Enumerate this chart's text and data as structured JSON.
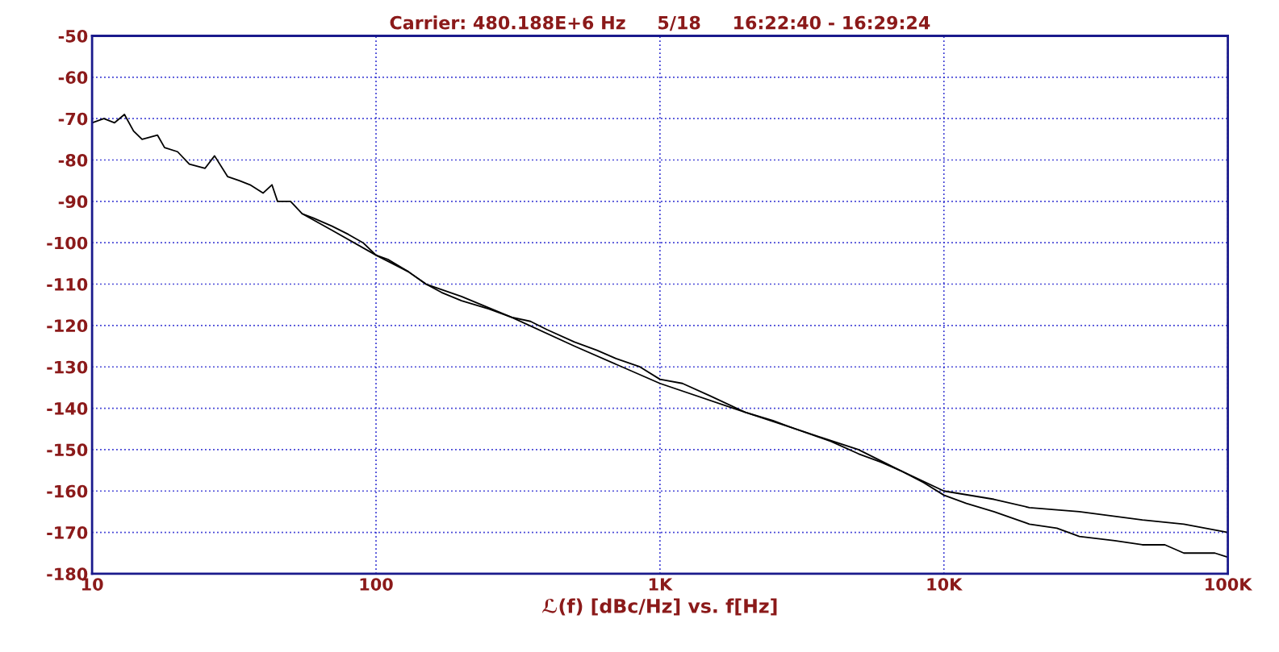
{
  "chart_data": {
    "type": "line",
    "title": "Carrier: 480.188E+6 Hz     5/18     16:22:40 - 16:29:24",
    "xlabel": "ℒ(f) [dBc/Hz] vs. f[Hz]",
    "log": "x",
    "xlim": [
      10,
      100000
    ],
    "xticks": [
      10,
      100,
      {
        "value": 1000,
        "label": "1K"
      },
      {
        "value": 10000,
        "label": "10K"
      },
      {
        "value": 100000,
        "label": "100K"
      }
    ],
    "ylim": [
      -180,
      -50
    ],
    "yticks": [
      -180,
      -170,
      -160,
      -150,
      -140,
      -130,
      -120,
      -110,
      -100,
      -90,
      -80,
      -70,
      -60,
      -50
    ],
    "grid": true,
    "line_style": "solid",
    "marker": "none",
    "series": [
      {
        "color": "#000000",
        "x": [
          10,
          11,
          12,
          13,
          14,
          15,
          17,
          18,
          20,
          22,
          25,
          27,
          30,
          33,
          36,
          40,
          43,
          45,
          50,
          55,
          60,
          70,
          80,
          90,
          100,
          110,
          130,
          150,
          170,
          200,
          250,
          300,
          350,
          400,
          500,
          600,
          700,
          850,
          1000,
          1200,
          1500,
          2000,
          2500,
          3000,
          4000,
          5000,
          6000,
          7000,
          8500,
          10000,
          12000,
          15000,
          20000,
          25000,
          30000,
          40000,
          50000,
          60000,
          70000,
          80000,
          90000,
          100000
        ],
        "values": [
          -71,
          -70,
          -71,
          -69,
          -73,
          -75,
          -74,
          -77,
          -78,
          -81,
          -82,
          -79,
          -84,
          -85,
          -86,
          -88,
          -86,
          -90,
          -90,
          -93,
          -94,
          -96,
          -98,
          -100,
          -103,
          -104,
          -107,
          -110,
          -112,
          -114,
          -116,
          -118,
          -119,
          -121,
          -124,
          -126,
          -128,
          -130,
          -133,
          -134,
          -137,
          -141,
          -143,
          -145,
          -148,
          -151,
          -153,
          -155,
          -158,
          -161,
          -163,
          -165,
          -168,
          -169,
          -171,
          -172,
          -173,
          -173,
          -175,
          -175,
          -175,
          -176
        ]
      },
      {
        "color": "#000000",
        "x": [
          55,
          70,
          100,
          130,
          150,
          200,
          300,
          500,
          1000,
          2000,
          3000,
          5000,
          7000,
          10000,
          15000,
          20000,
          30000,
          50000,
          70000,
          100000
        ],
        "values": [
          -93,
          -97,
          -103,
          -107,
          -110,
          -113,
          -118,
          -125,
          -134,
          -141,
          -145,
          -150,
          -155,
          -160,
          -162,
          -164,
          -165,
          -167,
          -168,
          -170
        ]
      }
    ]
  }
}
